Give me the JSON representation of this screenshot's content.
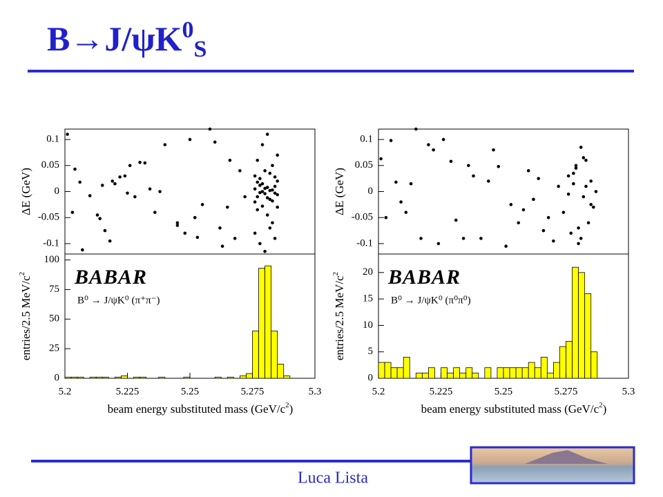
{
  "slide": {
    "title": "B→J/ψK",
    "title_sup": "0",
    "title_sub": "S",
    "author": "Luca Lista"
  },
  "chart_data": [
    {
      "type": "scatter",
      "y_label": "ΔE (GeV)",
      "xlim": [
        5.2,
        5.3
      ],
      "ylim": [
        -0.12,
        0.12
      ],
      "yticks": [
        0.1,
        0.05,
        0,
        -0.05,
        -0.1
      ],
      "color": "#000000",
      "x": [
        5.201,
        5.203,
        5.204,
        5.206,
        5.207,
        5.21,
        5.213,
        5.215,
        5.216,
        5.218,
        5.22,
        5.222,
        5.224,
        5.226,
        5.228,
        5.23,
        5.232,
        5.234,
        5.236,
        5.24,
        5.245,
        5.248,
        5.25,
        5.252,
        5.255,
        5.258,
        5.26,
        5.262,
        5.263,
        5.265,
        5.268,
        5.27,
        5.272,
        5.245,
        5.253,
        5.225,
        5.219,
        5.214,
        5.238,
        5.266,
        5.276,
        5.277,
        5.278,
        5.279,
        5.28,
        5.281,
        5.282,
        5.283,
        5.284,
        5.285,
        5.276,
        5.277,
        5.278,
        5.279,
        5.28,
        5.281,
        5.282,
        5.283,
        5.284,
        5.285,
        5.276,
        5.277,
        5.278,
        5.279,
        5.28,
        5.281,
        5.282,
        5.283,
        5.284,
        5.285,
        5.276,
        5.277,
        5.278,
        5.279,
        5.28,
        5.281,
        5.282,
        5.283,
        5.284,
        5.285
      ],
      "y": [
        0.11,
        -0.04,
        0.043,
        0.018,
        -0.112,
        -0.008,
        -0.045,
        0.012,
        -0.075,
        -0.095,
        0.015,
        0.028,
        0.03,
        0.05,
        -0.01,
        0.056,
        0.055,
        0.005,
        -0.04,
        0.09,
        -0.06,
        -0.08,
        0.1,
        -0.05,
        -0.025,
        0.12,
        0.095,
        -0.07,
        -0.105,
        -0.03,
        -0.09,
        0.04,
        -0.01,
        -0.065,
        -0.088,
        -0.003,
        0.02,
        -0.052,
        0.0,
        0.06,
        0.005,
        -0.01,
        0.012,
        0.0,
        -0.004,
        0.008,
        -0.015,
        0.003,
        0.01,
        -0.006,
        -0.02,
        0.018,
        -0.002,
        0.015,
        0.006,
        -0.012,
        0.002,
        -0.018,
        -0.003,
        0.02,
        0.03,
        -0.035,
        0.025,
        -0.028,
        0.04,
        -0.045,
        0.035,
        -0.06,
        0.028,
        -0.03,
        -0.08,
        0.06,
        -0.1,
        0.09,
        -0.115,
        0.11,
        -0.07,
        0.05,
        -0.09,
        0.07
      ]
    },
    {
      "type": "histogram",
      "y_label": "entries/2.5 MeV/c",
      "y_label_sup": "2",
      "x_label": "beam energy substituted mass (GeV/c",
      "x_label_sup": "2",
      "x_label_end": ")",
      "annotations": [
        "BABAR",
        "B⁰ → J/ψK⁰ (π⁺π⁻)"
      ],
      "color": "#ffff00",
      "xlim": [
        5.2,
        5.3
      ],
      "xticks": [
        5.2,
        5.225,
        5.25,
        5.275,
        5.3
      ],
      "ylim": [
        0,
        105
      ],
      "yticks": [
        0,
        25,
        50,
        75,
        100
      ],
      "bins": [
        5.2,
        5.2025,
        5.205,
        5.2075,
        5.21,
        5.2125,
        5.215,
        5.2175,
        5.22,
        5.2225,
        5.225,
        5.2275,
        5.23,
        5.2325,
        5.235,
        5.2375,
        5.24,
        5.2425,
        5.245,
        5.2475,
        5.25,
        5.2525,
        5.255,
        5.2575,
        5.26,
        5.2625,
        5.265,
        5.2675,
        5.27,
        5.2725,
        5.275,
        5.2775,
        5.28,
        5.2825,
        5.285,
        5.2875,
        5.29,
        5.2925,
        5.295,
        5.2975,
        5.3
      ],
      "values": [
        1,
        1,
        1,
        0,
        1,
        1,
        1,
        0,
        1,
        2,
        0,
        1,
        1,
        0,
        0,
        1,
        0,
        0,
        0,
        1,
        0,
        0,
        0,
        0,
        1,
        0,
        1,
        0,
        2,
        4,
        40,
        93,
        95,
        40,
        12,
        2,
        0,
        0,
        0,
        0
      ]
    },
    {
      "type": "scatter",
      "y_label": "ΔE (GeV)",
      "xlim": [
        5.2,
        5.3
      ],
      "ylim": [
        -0.12,
        0.12
      ],
      "yticks": [
        0.1,
        0.05,
        0,
        -0.05,
        -0.1
      ],
      "color": "#000000",
      "x": [
        5.201,
        5.203,
        5.205,
        5.207,
        5.209,
        5.211,
        5.213,
        5.215,
        5.217,
        5.22,
        5.222,
        5.224,
        5.226,
        5.229,
        5.231,
        5.234,
        5.236,
        5.238,
        5.241,
        5.244,
        5.246,
        5.248,
        5.251,
        5.253,
        5.256,
        5.258,
        5.26,
        5.262,
        5.264,
        5.266,
        5.268,
        5.27,
        5.272,
        5.274,
        5.276,
        5.277,
        5.278,
        5.279,
        5.28,
        5.281,
        5.282,
        5.283,
        5.284,
        5.285,
        5.286,
        5.287,
        5.276,
        5.279,
        5.281,
        5.283,
        5.285,
        5.278,
        5.28,
        5.282
      ],
      "y": [
        0.063,
        -0.05,
        0.098,
        0.018,
        -0.02,
        -0.04,
        0.015,
        0.12,
        -0.09,
        0.09,
        0.08,
        -0.1,
        0.1,
        0.058,
        -0.055,
        -0.09,
        0.05,
        0.03,
        -0.09,
        0.02,
        0.08,
        0.048,
        -0.105,
        -0.025,
        -0.06,
        -0.035,
        0.04,
        -0.015,
        0.025,
        -0.075,
        -0.05,
        -0.095,
        0.01,
        -0.04,
        0.03,
        -0.08,
        0.015,
        0.05,
        -0.1,
        0.085,
        -0.01,
        0.06,
        -0.06,
        0.02,
        -0.03,
        0.0,
        -0.005,
        0.045,
        -0.09,
        0.01,
        -0.025,
        0.035,
        -0.07,
        0.065
      ]
    },
    {
      "type": "histogram",
      "y_label": "entries/2.5 MeV/c",
      "y_label_sup": "2",
      "x_label": "beam energy substituted mass (GeV/c",
      "x_label_sup": "2",
      "x_label_end": ")",
      "annotations": [
        "BABAR",
        "B⁰ → J/ψK⁰ (π⁰π⁰)"
      ],
      "color": "#ffff00",
      "xlim": [
        5.2,
        5.3
      ],
      "xticks": [
        5.2,
        5.225,
        5.25,
        5.275,
        5.3
      ],
      "ylim": [
        0,
        23.5
      ],
      "yticks": [
        0,
        5,
        10,
        15,
        20
      ],
      "bins": [
        5.2,
        5.2025,
        5.205,
        5.2075,
        5.21,
        5.2125,
        5.215,
        5.2175,
        5.22,
        5.2225,
        5.225,
        5.2275,
        5.23,
        5.2325,
        5.235,
        5.2375,
        5.24,
        5.2425,
        5.245,
        5.2475,
        5.25,
        5.2525,
        5.255,
        5.2575,
        5.26,
        5.2625,
        5.265,
        5.2675,
        5.27,
        5.2725,
        5.275,
        5.2775,
        5.28,
        5.2825,
        5.285,
        5.2875,
        5.29,
        5.2925,
        5.295,
        5.2975,
        5.3
      ],
      "values": [
        3,
        3,
        2,
        2,
        4,
        0,
        1,
        1,
        2,
        0,
        2,
        1,
        2,
        1,
        2,
        1,
        0,
        2,
        0,
        2,
        2,
        2,
        2,
        2,
        3,
        2,
        4,
        1,
        3,
        6,
        7,
        21,
        20,
        16,
        5,
        0,
        0,
        0,
        0,
        0
      ]
    }
  ]
}
